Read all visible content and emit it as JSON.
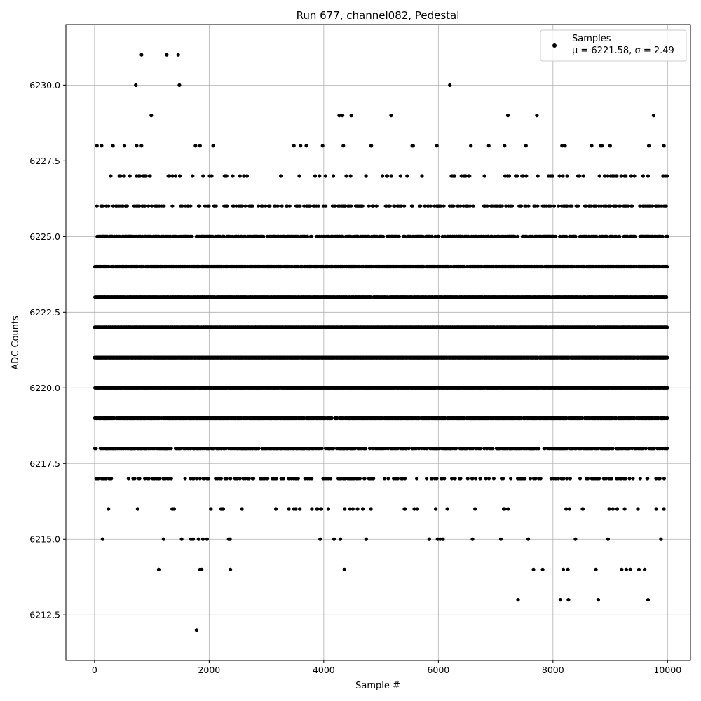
{
  "chart_data": {
    "type": "scatter",
    "title": "Run 677, channel082, Pedestal",
    "xlabel": "Sample #",
    "ylabel": "ADC Counts",
    "xlim": [
      -500,
      10400
    ],
    "ylim": [
      6211.0,
      6232.0
    ],
    "xticks": [
      0,
      2000,
      4000,
      6000,
      8000,
      10000
    ],
    "xtick_labels": [
      "0",
      "2000",
      "4000",
      "6000",
      "8000",
      "10000"
    ],
    "yticks": [
      6212.5,
      6215.0,
      6217.5,
      6220.0,
      6222.5,
      6225.0,
      6227.5,
      6230.0
    ],
    "ytick_labels": [
      "6212.5",
      "6215.0",
      "6217.5",
      "6220.0",
      "6222.5",
      "6225.0",
      "6227.5",
      "6230.0"
    ],
    "grid": true,
    "legend_position": "top-right",
    "legend": {
      "label": "Samples",
      "stats": "μ = 6221.58, σ = 2.49"
    },
    "point_color": "#000000",
    "n_samples": 10000,
    "series": [
      {
        "name": "Samples",
        "level_density": [
          {
            "y": 6220,
            "density": 0.93
          },
          {
            "y": 6221,
            "density": 0.97
          },
          {
            "y": 6222,
            "density": 0.97
          },
          {
            "y": 6223,
            "density": 0.91
          },
          {
            "y": 6219,
            "density": 0.8
          },
          {
            "y": 6224,
            "density": 0.76
          },
          {
            "y": 6218,
            "density": 0.5
          },
          {
            "y": 6225,
            "density": 0.48
          },
          {
            "y": 6226,
            "density": 0.26
          },
          {
            "y": 6217,
            "density": 0.2
          },
          {
            "y": 6227,
            "density": 0.1
          },
          {
            "y": 6216,
            "density": 0.05
          },
          {
            "y": 6228,
            "density": 0.03
          },
          {
            "y": 6215,
            "density": 0.015
          },
          {
            "y": 6229,
            "density": 0.008
          }
        ],
        "sparse_points": [
          [
            820,
            6231
          ],
          [
            1260,
            6231
          ],
          [
            1460,
            6231
          ],
          [
            720,
            6230
          ],
          [
            1480,
            6230
          ],
          [
            6200,
            6230
          ],
          [
            140,
            6215
          ],
          [
            1720,
            6215
          ],
          [
            1890,
            6215
          ],
          [
            2340,
            6215
          ],
          [
            4290,
            6215
          ],
          [
            4740,
            6215
          ],
          [
            5840,
            6215
          ],
          [
            1120,
            6214
          ],
          [
            1840,
            6214
          ],
          [
            1870,
            6214
          ],
          [
            2370,
            6214
          ],
          [
            4360,
            6214
          ],
          [
            7660,
            6214
          ],
          [
            7820,
            6214
          ],
          [
            8180,
            6214
          ],
          [
            8260,
            6214
          ],
          [
            8750,
            6214
          ],
          [
            9200,
            6214
          ],
          [
            9280,
            6214
          ],
          [
            9350,
            6214
          ],
          [
            9500,
            6214
          ],
          [
            9600,
            6214
          ],
          [
            7390,
            6213
          ],
          [
            8130,
            6213
          ],
          [
            8270,
            6213
          ],
          [
            8790,
            6213
          ],
          [
            9660,
            6213
          ],
          [
            1780,
            6212
          ]
        ]
      }
    ]
  }
}
